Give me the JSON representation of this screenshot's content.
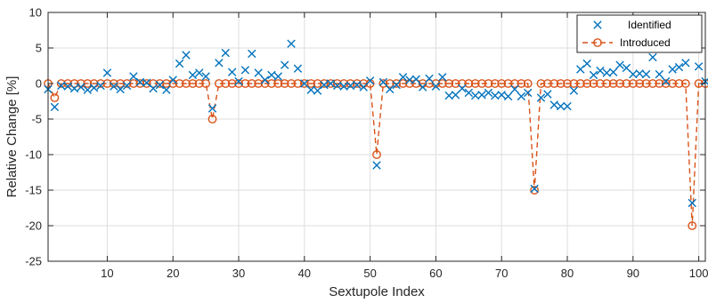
{
  "chart_data": {
    "type": "scatter",
    "title": "",
    "xlabel": "Sextupole Index",
    "ylabel": "Relative Change [%]",
    "xlim": [
      1,
      101
    ],
    "ylim": [
      -25,
      10
    ],
    "xticks": [
      10,
      20,
      30,
      40,
      50,
      60,
      70,
      80,
      90,
      100
    ],
    "yticks": [
      -25,
      -20,
      -15,
      -10,
      -5,
      0,
      5,
      10
    ],
    "grid": true,
    "legend_position": "top-right",
    "series": [
      {
        "name": "Identified",
        "marker": "x",
        "line": "none",
        "color": "#0072BD",
        "x": [
          1,
          2,
          3,
          4,
          5,
          6,
          7,
          8,
          9,
          10,
          11,
          12,
          13,
          14,
          15,
          16,
          17,
          18,
          19,
          20,
          21,
          22,
          23,
          24,
          25,
          26,
          27,
          28,
          29,
          30,
          31,
          32,
          33,
          34,
          35,
          36,
          37,
          38,
          39,
          40,
          41,
          42,
          43,
          44,
          45,
          46,
          47,
          48,
          49,
          50,
          51,
          52,
          53,
          54,
          55,
          56,
          57,
          58,
          59,
          60,
          61,
          62,
          63,
          64,
          65,
          66,
          67,
          68,
          69,
          70,
          71,
          72,
          73,
          74,
          75,
          76,
          77,
          78,
          79,
          80,
          81,
          82,
          83,
          84,
          85,
          86,
          87,
          88,
          89,
          90,
          91,
          92,
          93,
          94,
          95,
          96,
          97,
          98,
          99,
          100,
          101
        ],
        "y": [
          -0.8,
          -3.3,
          -0.3,
          -0.4,
          -0.7,
          -0.5,
          -0.9,
          -0.6,
          -0.3,
          1.5,
          -0.4,
          -0.8,
          -0.3,
          1.0,
          0.2,
          0.1,
          -0.7,
          -0.2,
          -0.9,
          0.5,
          2.8,
          4.0,
          1.2,
          1.5,
          1.0,
          -3.5,
          2.9,
          4.3,
          1.6,
          0.3,
          1.9,
          4.2,
          1.5,
          0.5,
          1.2,
          1.0,
          2.6,
          5.6,
          2.1,
          0.0,
          -0.9,
          -1.0,
          -0.2,
          0.0,
          -0.3,
          -0.4,
          -0.3,
          -0.2,
          -0.5,
          0.4,
          -11.5,
          0.2,
          -0.8,
          -0.2,
          0.9,
          0.5,
          0.6,
          -0.5,
          0.7,
          -0.4,
          0.9,
          -1.7,
          -1.6,
          -0.7,
          -1.3,
          -1.7,
          -1.6,
          -1.3,
          -1.7,
          -1.6,
          -1.8,
          -0.8,
          -1.8,
          -1.3,
          -14.8,
          -2.0,
          -1.5,
          -3.0,
          -3.2,
          -3.2,
          -1.0,
          2.0,
          2.8,
          1.2,
          1.8,
          1.5,
          1.6,
          2.6,
          2.2,
          1.3,
          1.4,
          1.3,
          3.7,
          1.3,
          0.3,
          2.0,
          2.3,
          2.9,
          -16.8,
          2.4,
          0.3
        ]
      },
      {
        "name": "Introduced",
        "marker": "o",
        "line": "dashed",
        "color": "#D95319",
        "x": [
          1,
          2,
          3,
          4,
          5,
          6,
          7,
          8,
          9,
          10,
          11,
          12,
          13,
          14,
          15,
          16,
          17,
          18,
          19,
          20,
          21,
          22,
          23,
          24,
          25,
          26,
          27,
          28,
          29,
          30,
          31,
          32,
          33,
          34,
          35,
          36,
          37,
          38,
          39,
          40,
          41,
          42,
          43,
          44,
          45,
          46,
          47,
          48,
          49,
          50,
          51,
          52,
          53,
          54,
          55,
          56,
          57,
          58,
          59,
          60,
          61,
          62,
          63,
          64,
          65,
          66,
          67,
          68,
          69,
          70,
          71,
          72,
          73,
          74,
          75,
          76,
          77,
          78,
          79,
          80,
          81,
          82,
          83,
          84,
          85,
          86,
          87,
          88,
          89,
          90,
          91,
          92,
          93,
          94,
          95,
          96,
          97,
          98,
          99,
          100,
          101
        ],
        "y": [
          0,
          -2,
          0,
          0,
          0,
          0,
          0,
          0,
          0,
          0,
          0,
          0,
          0,
          0,
          0,
          0,
          0,
          0,
          0,
          0,
          0,
          0,
          0,
          0,
          0,
          -5,
          0,
          0,
          0,
          0,
          0,
          0,
          0,
          0,
          0,
          0,
          0,
          0,
          0,
          0,
          0,
          0,
          0,
          0,
          0,
          0,
          0,
          0,
          0,
          0,
          -10,
          0,
          0,
          0,
          0,
          0,
          0,
          0,
          0,
          0,
          0,
          0,
          0,
          0,
          0,
          0,
          0,
          0,
          0,
          0,
          0,
          0,
          0,
          0,
          -15,
          0,
          0,
          0,
          0,
          0,
          0,
          0,
          0,
          0,
          0,
          0,
          0,
          0,
          0,
          0,
          0,
          0,
          0,
          0,
          0,
          0,
          0,
          0,
          -20,
          0,
          0
        ]
      }
    ]
  }
}
